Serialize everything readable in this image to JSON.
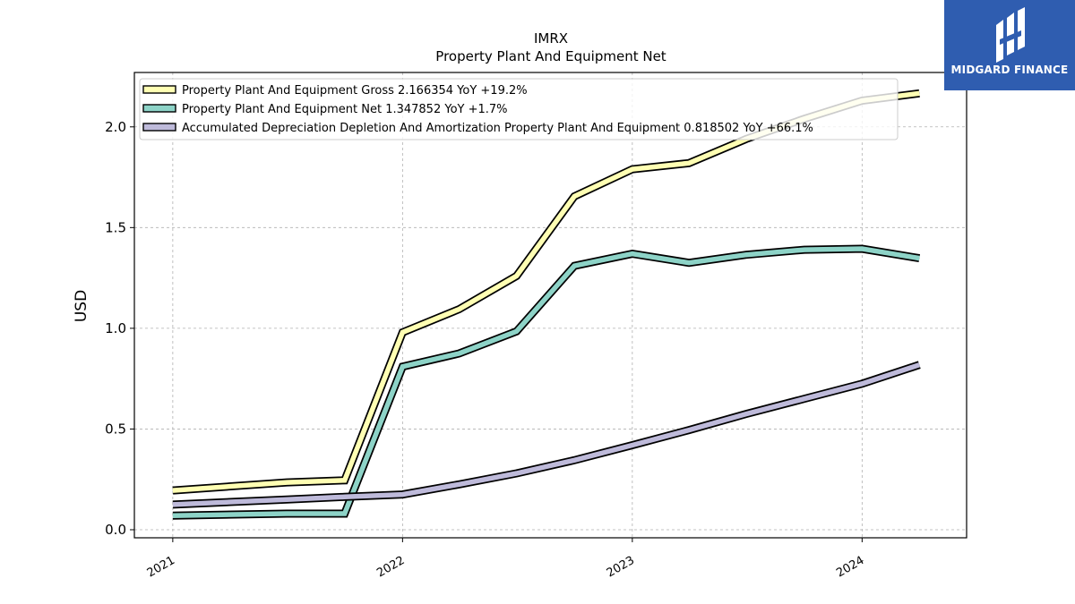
{
  "chart_data": {
    "type": "line",
    "title": "IMRX",
    "subtitle": "Property Plant And Equipment Net",
    "ylabel": "USD",
    "xlabel": "",
    "x_ticks": [
      "2021",
      "2022",
      "2023",
      "2024"
    ],
    "y_ticks": [
      "0.0",
      "0.5",
      "1.0",
      "1.5",
      "2.0"
    ],
    "xlim": [
      "2020-11-01",
      "2024-06-15"
    ],
    "ylim": [
      -0.04,
      2.27
    ],
    "grid": true,
    "legend_position": "top-left",
    "series": [
      {
        "name": "Property Plant And Equipment Gross",
        "legend": "Property Plant And Equipment Gross  2.166354 YoY +19.2%",
        "color": "#ffffb3",
        "x": [
          "2021-01-01",
          "2021-07-01",
          "2021-10-01",
          "2022-01-01",
          "2022-04-01",
          "2022-07-01",
          "2022-10-01",
          "2023-01-01",
          "2023-04-01",
          "2023-07-01",
          "2023-10-01",
          "2024-01-01",
          "2024-04-01"
        ],
        "y": [
          0.195,
          0.235,
          0.245,
          0.98,
          1.095,
          1.26,
          1.655,
          1.79,
          1.82,
          1.94,
          2.04,
          2.13,
          2.166354
        ]
      },
      {
        "name": "Property Plant And Equipment Net",
        "legend": "Property Plant And Equipment Net  1.347852 YoY +1.7%",
        "color": "#8dd3c7",
        "x": [
          "2021-01-01",
          "2021-07-01",
          "2021-10-01",
          "2022-01-01",
          "2022-04-01",
          "2022-07-01",
          "2022-10-01",
          "2023-01-01",
          "2023-04-01",
          "2023-07-01",
          "2023-10-01",
          "2024-01-01",
          "2024-04-01"
        ],
        "y": [
          0.07,
          0.08,
          0.08,
          0.81,
          0.875,
          0.985,
          1.31,
          1.37,
          1.325,
          1.365,
          1.39,
          1.395,
          1.347852
        ]
      },
      {
        "name": "Accumulated Depreciation Depletion And Amortization Property Plant And Equipment",
        "legend": "Accumulated Depreciation Depletion And Amortization Property Plant And Equipment  0.818502 YoY +66.1%",
        "color": "#bebada",
        "x": [
          "2021-01-01",
          "2021-07-01",
          "2021-10-01",
          "2022-01-01",
          "2022-04-01",
          "2022-07-01",
          "2022-10-01",
          "2023-01-01",
          "2023-04-01",
          "2023-07-01",
          "2023-10-01",
          "2024-01-01",
          "2024-04-01"
        ],
        "y": [
          0.125,
          0.15,
          0.163,
          0.175,
          0.225,
          0.28,
          0.345,
          0.42,
          0.495,
          0.575,
          0.65,
          0.725,
          0.818502
        ]
      }
    ]
  },
  "logo": {
    "text": "MIDGARD FINANCE",
    "icon": "midgard-logo-icon",
    "background": "#2f5db0"
  }
}
